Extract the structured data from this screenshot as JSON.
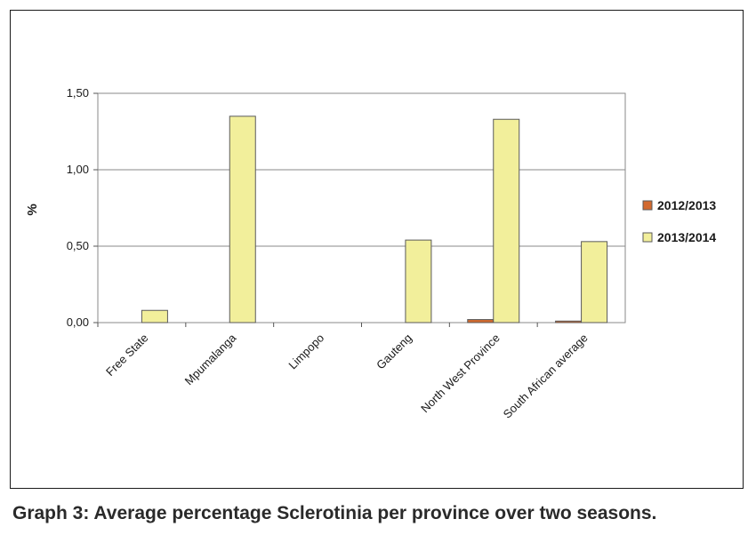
{
  "caption": "Graph 3: Average percentage Sclerotinia per province over two seasons.",
  "chart_data": {
    "type": "bar",
    "title": "",
    "xlabel": "",
    "ylabel": "%",
    "ylim": [
      0,
      1.5
    ],
    "yticks": [
      "0,00",
      "0,50",
      "1,00",
      "1,50"
    ],
    "ytick_values": [
      0,
      0.5,
      1.0,
      1.5
    ],
    "grid": true,
    "legend_position": "right",
    "categories": [
      "Free State",
      "Mpumalanga",
      "Limpopo",
      "Gauteng",
      "North West Province",
      "South African average"
    ],
    "series": [
      {
        "name": "2012/2013",
        "color": "#d2692e",
        "values": [
          0,
          0,
          0,
          0,
          0.02,
          0.01
        ]
      },
      {
        "name": "2013/2014",
        "color": "#f2ef9b",
        "values": [
          0.08,
          1.35,
          0,
          0.54,
          1.33,
          0.53
        ]
      }
    ]
  }
}
